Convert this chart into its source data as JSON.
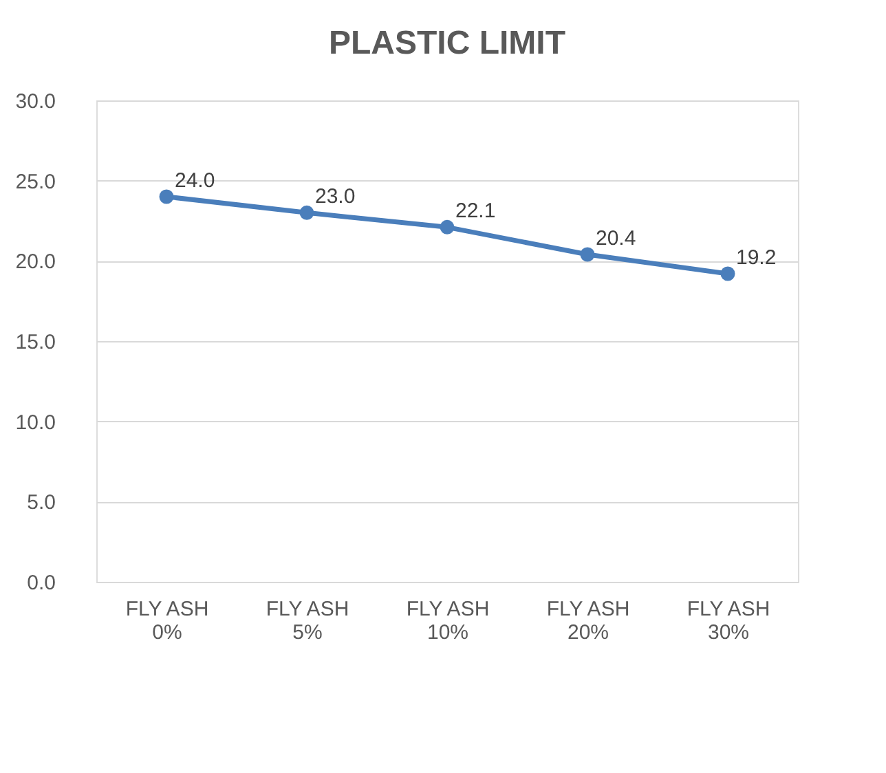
{
  "chart_data": {
    "type": "line",
    "title": "PLASTIC LIMIT",
    "categories": [
      "FLY ASH 0%",
      "FLY ASH 5%",
      "FLY ASH 10%",
      "FLY ASH 20%",
      "FLY ASH 30%"
    ],
    "series": [
      {
        "color": "#4a7ebb",
        "values": [
          24.0,
          23.0,
          22.1,
          20.4,
          19.2
        ],
        "value_labels": [
          "24.0",
          "23.0",
          "22.1",
          "20.4",
          "19.2"
        ]
      }
    ],
    "ylim": [
      0,
      30
    ],
    "yticks": [
      {
        "value": 0,
        "label": "0.0"
      },
      {
        "value": 5,
        "label": "5.0"
      },
      {
        "value": 10,
        "label": "10.0"
      },
      {
        "value": 15,
        "label": "15.0"
      },
      {
        "value": 20,
        "label": "20.0"
      },
      {
        "value": 25,
        "label": "25.0"
      },
      {
        "value": 30,
        "label": "30.0"
      }
    ],
    "grid": "y",
    "marker": "circle",
    "line_style": "solid"
  }
}
